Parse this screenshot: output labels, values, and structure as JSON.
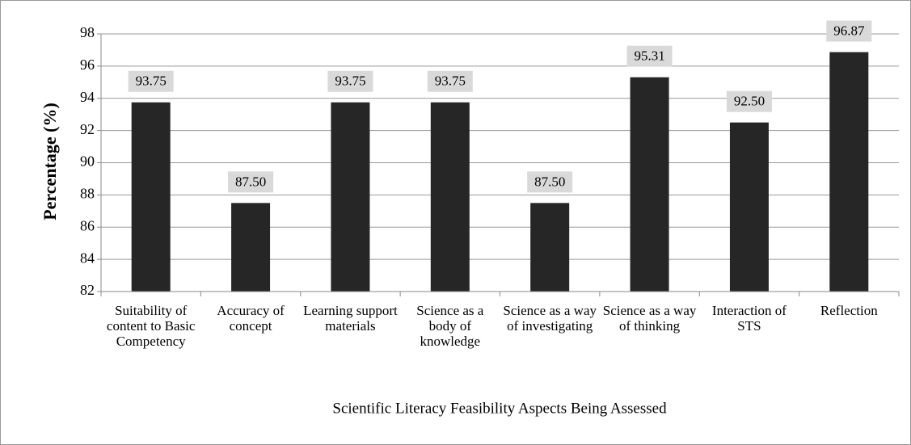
{
  "chart_data": {
    "type": "bar",
    "x_label": "Scientific Literacy Feasibility Aspects Being Assessed",
    "y_label": "Percentage (%)",
    "categories": [
      "Suitability of content to Basic Competency",
      "Accuracy of concept",
      "Learning support materials",
      "Science as a body of knowledge",
      "Science as a way of investigating",
      "Science as a way of thinking",
      "Interaction of STS",
      "Reflection"
    ],
    "values": [
      93.75,
      87.5,
      93.75,
      93.75,
      87.5,
      95.31,
      92.5,
      96.87
    ],
    "value_labels": [
      "93.75",
      "87.50",
      "93.75",
      "93.75",
      "87.50",
      "95.31",
      "92.50",
      "96.87"
    ],
    "color": "#262626",
    "ylim": [
      82,
      98
    ],
    "yticks": [
      82,
      84,
      86,
      88,
      90,
      92,
      94,
      96,
      98
    ],
    "grid": true
  }
}
